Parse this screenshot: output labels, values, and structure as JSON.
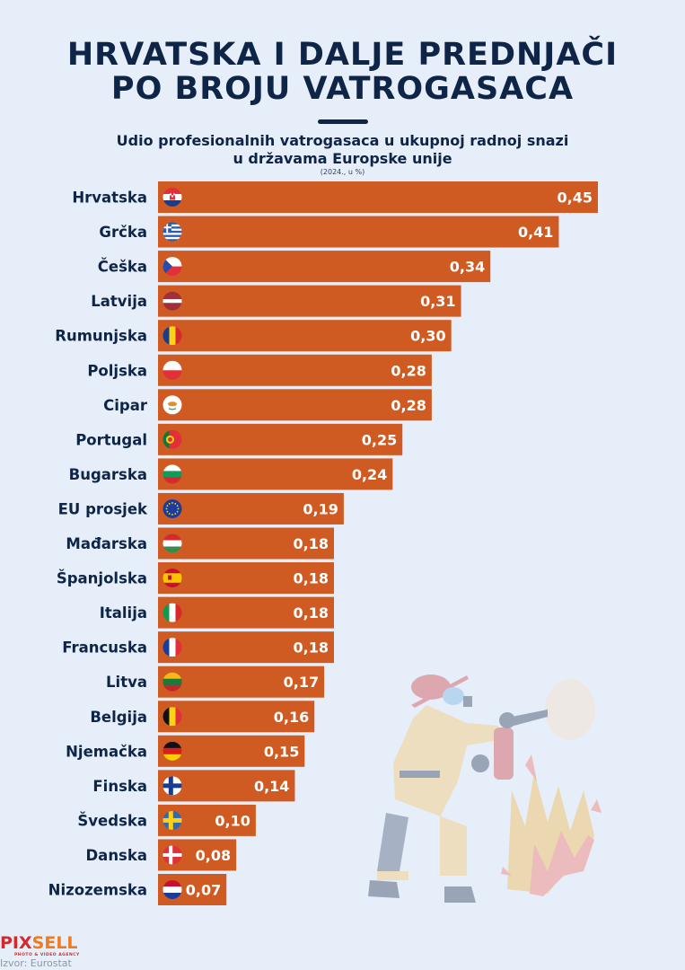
{
  "header": {
    "title_line1": "HRVATSKA I DALJE PREDNJAČI",
    "title_line2": "PO BROJU VATROGASACA",
    "subtitle_line1": "Udio profesionalnih vatrogasaca u ukupnoj radnoj snazi",
    "subtitle_line2": "u državama Europske unije",
    "note": "(2024., u %)"
  },
  "colors": {
    "bar": "#d05b22",
    "label": "#0f2548",
    "value_text": "#ffffff",
    "background": "#e6eef9"
  },
  "chart_data": {
    "type": "bar",
    "orientation": "horizontal",
    "title": "Udio profesionalnih vatrogasaca u ukupnoj radnoj snazi u državama Europske unije",
    "subtitle": "(2024., u %)",
    "xlabel": "",
    "ylabel": "",
    "xlim": [
      0,
      0.45
    ],
    "grid": false,
    "legend": "none",
    "categories": [
      "Hrvatska",
      "Grčka",
      "Češka",
      "Latvija",
      "Rumunjska",
      "Poljska",
      "Cipar",
      "Portugal",
      "Bugarska",
      "EU prosjek",
      "Mađarska",
      "Španjolska",
      "Italija",
      "Francuska",
      "Litva",
      "Belgija",
      "Njemačka",
      "Finska",
      "Švedska",
      "Danska",
      "Nizozemska"
    ],
    "values": [
      0.45,
      0.41,
      0.34,
      0.31,
      0.3,
      0.28,
      0.28,
      0.25,
      0.24,
      0.19,
      0.18,
      0.18,
      0.18,
      0.18,
      0.17,
      0.16,
      0.15,
      0.14,
      0.1,
      0.08,
      0.07
    ],
    "value_labels": [
      "0,45",
      "0,41",
      "0,34",
      "0,31",
      "0,30",
      "0,28",
      "0,28",
      "0,25",
      "0,24",
      "0,19",
      "0,18",
      "0,18",
      "0,18",
      "0,18",
      "0,17",
      "0,16",
      "0,15",
      "0,14",
      "0,10",
      "0,08",
      "0,07"
    ],
    "flags": [
      "croatia-flag-icon",
      "greece-flag-icon",
      "czechia-flag-icon",
      "latvia-flag-icon",
      "romania-flag-icon",
      "poland-flag-icon",
      "cyprus-flag-icon",
      "portugal-flag-icon",
      "bulgaria-flag-icon",
      "eu-flag-icon",
      "hungary-flag-icon",
      "spain-flag-icon",
      "italy-flag-icon",
      "france-flag-icon",
      "lithuania-flag-icon",
      "belgium-flag-icon",
      "germany-flag-icon",
      "finland-flag-icon",
      "sweden-flag-icon",
      "denmark-flag-icon",
      "netherlands-flag-icon"
    ]
  },
  "illustration": "firefighter-with-extinguisher-icon",
  "footer": {
    "logo_part1": "PIX",
    "logo_part2": "SELL",
    "logo_tagline": "PHOTO & VIDEO AGENCY",
    "source": "Izvor: Eurostat"
  }
}
